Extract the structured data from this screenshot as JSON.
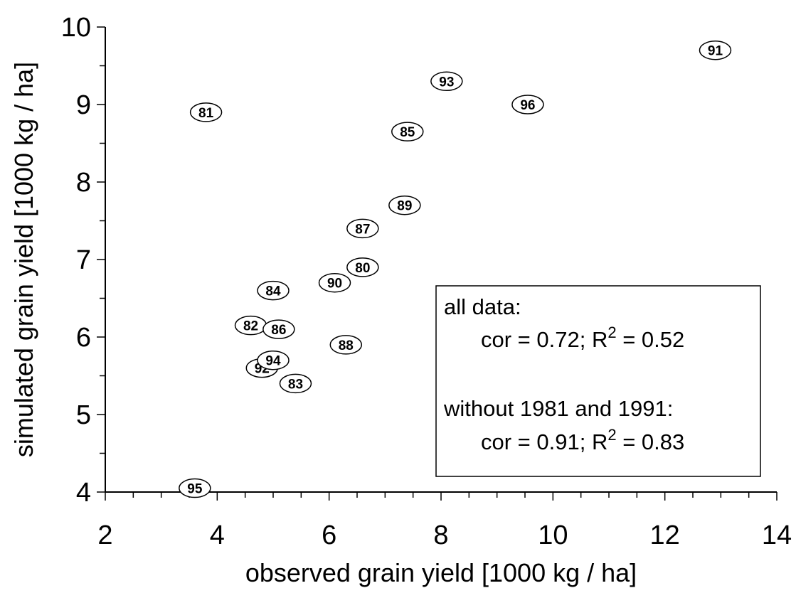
{
  "chart_data": {
    "type": "scatter",
    "title": "",
    "xlabel": "observed grain yield  [1000 kg / ha]",
    "ylabel": "simulated grain yield  [1000 kg / ha]",
    "xlim": [
      2,
      14
    ],
    "ylim": [
      4,
      10
    ],
    "xticks": [
      "2",
      "4",
      "6",
      "8",
      "10",
      "12",
      "14"
    ],
    "yticks": [
      "4",
      "5",
      "6",
      "7",
      "8",
      "9",
      "10"
    ],
    "grid": false,
    "marker": "ellipse labelled with year",
    "points": [
      {
        "label": "80",
        "x": 6.6,
        "y": 6.9
      },
      {
        "label": "81",
        "x": 3.8,
        "y": 8.9
      },
      {
        "label": "82",
        "x": 4.6,
        "y": 6.15
      },
      {
        "label": "83",
        "x": 5.4,
        "y": 5.4
      },
      {
        "label": "84",
        "x": 5.0,
        "y": 6.6
      },
      {
        "label": "85",
        "x": 7.4,
        "y": 8.65
      },
      {
        "label": "86",
        "x": 5.1,
        "y": 6.1
      },
      {
        "label": "87",
        "x": 6.6,
        "y": 7.4
      },
      {
        "label": "88",
        "x": 6.3,
        "y": 5.9
      },
      {
        "label": "89",
        "x": 7.35,
        "y": 7.7
      },
      {
        "label": "90",
        "x": 6.1,
        "y": 6.7
      },
      {
        "label": "91",
        "x": 12.9,
        "y": 9.7
      },
      {
        "label": "92",
        "x": 4.8,
        "y": 5.6
      },
      {
        "label": "93",
        "x": 8.1,
        "y": 9.3
      },
      {
        "label": "94",
        "x": 5.0,
        "y": 5.7
      },
      {
        "label": "95",
        "x": 3.6,
        "y": 4.05
      },
      {
        "label": "96",
        "x": 9.55,
        "y": 9.0
      }
    ],
    "annotation": {
      "line1": "all data:",
      "line2_prefix": "cor = 0.72;  R",
      "line2_sup": "2",
      "line2_suffix": "  = 0.52",
      "line3": "without 1981 and 1991:",
      "line4_prefix": "cor = 0.91;  R",
      "line4_sup": "2",
      "line4_suffix": " = 0.83"
    }
  }
}
